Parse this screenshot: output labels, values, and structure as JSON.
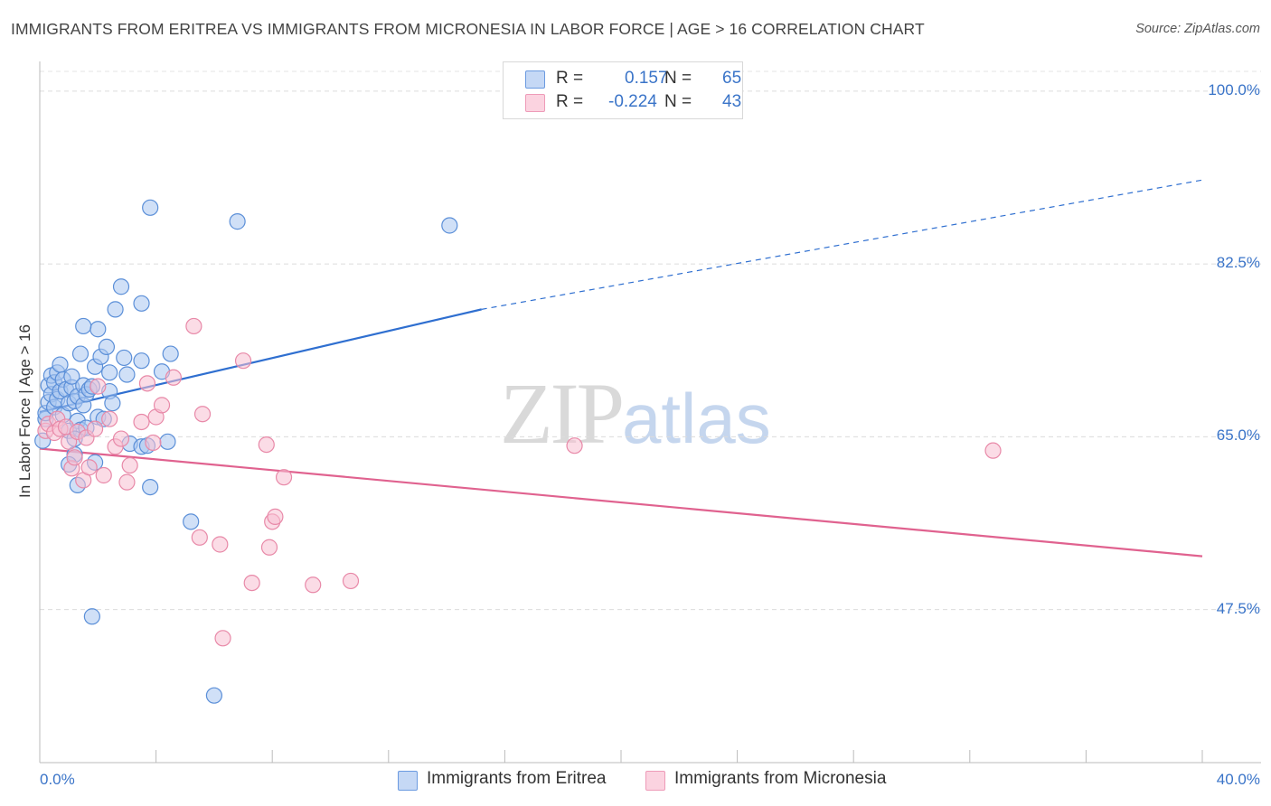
{
  "header": {
    "title": "IMMIGRANTS FROM ERITREA VS IMMIGRANTS FROM MICRONESIA IN LABOR FORCE | AGE > 16 CORRELATION CHART",
    "source": "Source: ZipAtlas.com"
  },
  "watermark": {
    "zip": "ZIP",
    "atlas": "atlas"
  },
  "legend": {
    "rows": [
      {
        "r_label": "R =",
        "r_value": "0.157",
        "n_label": "N =",
        "n_value": "65"
      },
      {
        "r_label": "R =",
        "r_value": "-0.224",
        "n_label": "N =",
        "n_value": "43"
      }
    ]
  },
  "bottom_legend": [
    "Immigrants from Eritrea",
    "Immigrants from Micronesia"
  ],
  "colors": {
    "eritrea_fill": "#a9c6f0",
    "eritrea_stroke": "#5b8fd8",
    "eritrea_line": "#2f6fd0",
    "micronesia_fill": "#f7bfd1",
    "micronesia_stroke": "#e889a8",
    "micronesia_line": "#e0628f",
    "tick_label": "#3a74c8"
  },
  "chart_data": {
    "type": "scatter",
    "title": "IMMIGRANTS FROM ERITREA VS IMMIGRANTS FROM MICRONESIA IN LABOR FORCE | AGE > 16 CORRELATION CHART",
    "xlabel": "",
    "ylabel": "In Labor Force | Age > 16",
    "xlim": [
      0,
      40
    ],
    "ylim": [
      32,
      102
    ],
    "x_tick_labels": [
      "0.0%",
      "40.0%"
    ],
    "y_ticks": [
      100,
      82.5,
      65,
      47.5
    ],
    "y_tick_labels": [
      "100.0%",
      "82.5%",
      "65.0%",
      "47.5%"
    ],
    "grid": true,
    "legend_placement": "top-center",
    "series": [
      {
        "name": "Immigrants from Eritrea",
        "R": 0.157,
        "N": 65,
        "trend": {
          "x0": 0.0,
          "y0": 67.5,
          "x1": 15.2,
          "y1": 77.9,
          "dashed_to_x": 40.0,
          "dashed_to_y": 91.0
        },
        "points": [
          [
            0.1,
            64.6
          ],
          [
            0.2,
            66.8
          ],
          [
            0.2,
            67.4
          ],
          [
            0.3,
            68.5
          ],
          [
            0.3,
            70.2
          ],
          [
            0.4,
            71.2
          ],
          [
            0.4,
            69.3
          ],
          [
            0.5,
            68.0
          ],
          [
            0.5,
            70.5
          ],
          [
            0.6,
            71.5
          ],
          [
            0.6,
            68.8
          ],
          [
            0.7,
            72.3
          ],
          [
            0.7,
            69.6
          ],
          [
            0.8,
            70.8
          ],
          [
            0.8,
            67.2
          ],
          [
            0.9,
            69.8
          ],
          [
            1.0,
            68.4
          ],
          [
            1.0,
            65.6
          ],
          [
            1.1,
            70.0
          ],
          [
            1.1,
            71.1
          ],
          [
            1.2,
            68.6
          ],
          [
            1.2,
            63.2
          ],
          [
            1.3,
            69.1
          ],
          [
            1.3,
            66.6
          ],
          [
            1.4,
            65.7
          ],
          [
            1.4,
            73.4
          ],
          [
            1.5,
            70.2
          ],
          [
            1.5,
            68.2
          ],
          [
            1.6,
            69.3
          ],
          [
            1.6,
            65.9
          ],
          [
            1.7,
            69.8
          ],
          [
            1.8,
            70.1
          ],
          [
            1.9,
            72.1
          ],
          [
            2.0,
            75.9
          ],
          [
            2.0,
            67.0
          ],
          [
            2.1,
            73.1
          ],
          [
            2.2,
            66.8
          ],
          [
            2.3,
            74.1
          ],
          [
            2.4,
            69.6
          ],
          [
            2.4,
            71.5
          ],
          [
            2.5,
            68.4
          ],
          [
            2.6,
            77.9
          ],
          [
            2.8,
            80.2
          ],
          [
            2.9,
            73.0
          ],
          [
            3.0,
            71.3
          ],
          [
            3.1,
            64.3
          ],
          [
            3.5,
            78.5
          ],
          [
            3.5,
            72.7
          ],
          [
            3.5,
            64.0
          ],
          [
            3.7,
            64.1
          ],
          [
            3.8,
            59.9
          ],
          [
            1.5,
            76.2
          ],
          [
            1.0,
            62.2
          ],
          [
            1.3,
            60.1
          ],
          [
            1.2,
            64.8
          ],
          [
            1.9,
            62.4
          ],
          [
            4.2,
            71.6
          ],
          [
            4.4,
            64.5
          ],
          [
            4.5,
            73.4
          ],
          [
            5.2,
            56.4
          ],
          [
            6.0,
            38.8
          ],
          [
            6.8,
            86.8
          ],
          [
            14.1,
            86.4
          ],
          [
            1.8,
            46.8
          ],
          [
            3.8,
            88.2
          ]
        ]
      },
      {
        "name": "Immigrants from Micronesia",
        "R": -0.224,
        "N": 43,
        "trend": {
          "x0": 0.0,
          "y0": 63.8,
          "x1": 40.0,
          "y1": 52.9
        },
        "points": [
          [
            0.2,
            65.6
          ],
          [
            0.3,
            66.3
          ],
          [
            0.5,
            65.4
          ],
          [
            0.6,
            66.8
          ],
          [
            0.7,
            65.8
          ],
          [
            0.9,
            66.0
          ],
          [
            1.0,
            64.5
          ],
          [
            1.1,
            61.8
          ],
          [
            1.2,
            62.9
          ],
          [
            1.3,
            65.5
          ],
          [
            1.5,
            60.6
          ],
          [
            1.6,
            64.9
          ],
          [
            1.7,
            61.9
          ],
          [
            1.9,
            65.8
          ],
          [
            2.0,
            70.1
          ],
          [
            2.2,
            61.1
          ],
          [
            2.4,
            66.8
          ],
          [
            2.6,
            64.0
          ],
          [
            2.8,
            64.8
          ],
          [
            3.0,
            60.4
          ],
          [
            3.1,
            62.1
          ],
          [
            3.5,
            66.5
          ],
          [
            3.7,
            70.4
          ],
          [
            3.9,
            64.4
          ],
          [
            4.0,
            67.0
          ],
          [
            4.2,
            68.2
          ],
          [
            4.6,
            71.0
          ],
          [
            5.3,
            76.2
          ],
          [
            5.5,
            54.8
          ],
          [
            5.6,
            67.3
          ],
          [
            6.2,
            54.1
          ],
          [
            6.3,
            44.6
          ],
          [
            7.0,
            72.7
          ],
          [
            7.3,
            50.2
          ],
          [
            7.8,
            64.2
          ],
          [
            7.9,
            53.8
          ],
          [
            8.0,
            56.4
          ],
          [
            8.1,
            56.9
          ],
          [
            8.4,
            60.9
          ],
          [
            9.4,
            50.0
          ],
          [
            10.7,
            50.4
          ],
          [
            18.4,
            64.1
          ],
          [
            32.8,
            63.6
          ]
        ]
      }
    ]
  }
}
